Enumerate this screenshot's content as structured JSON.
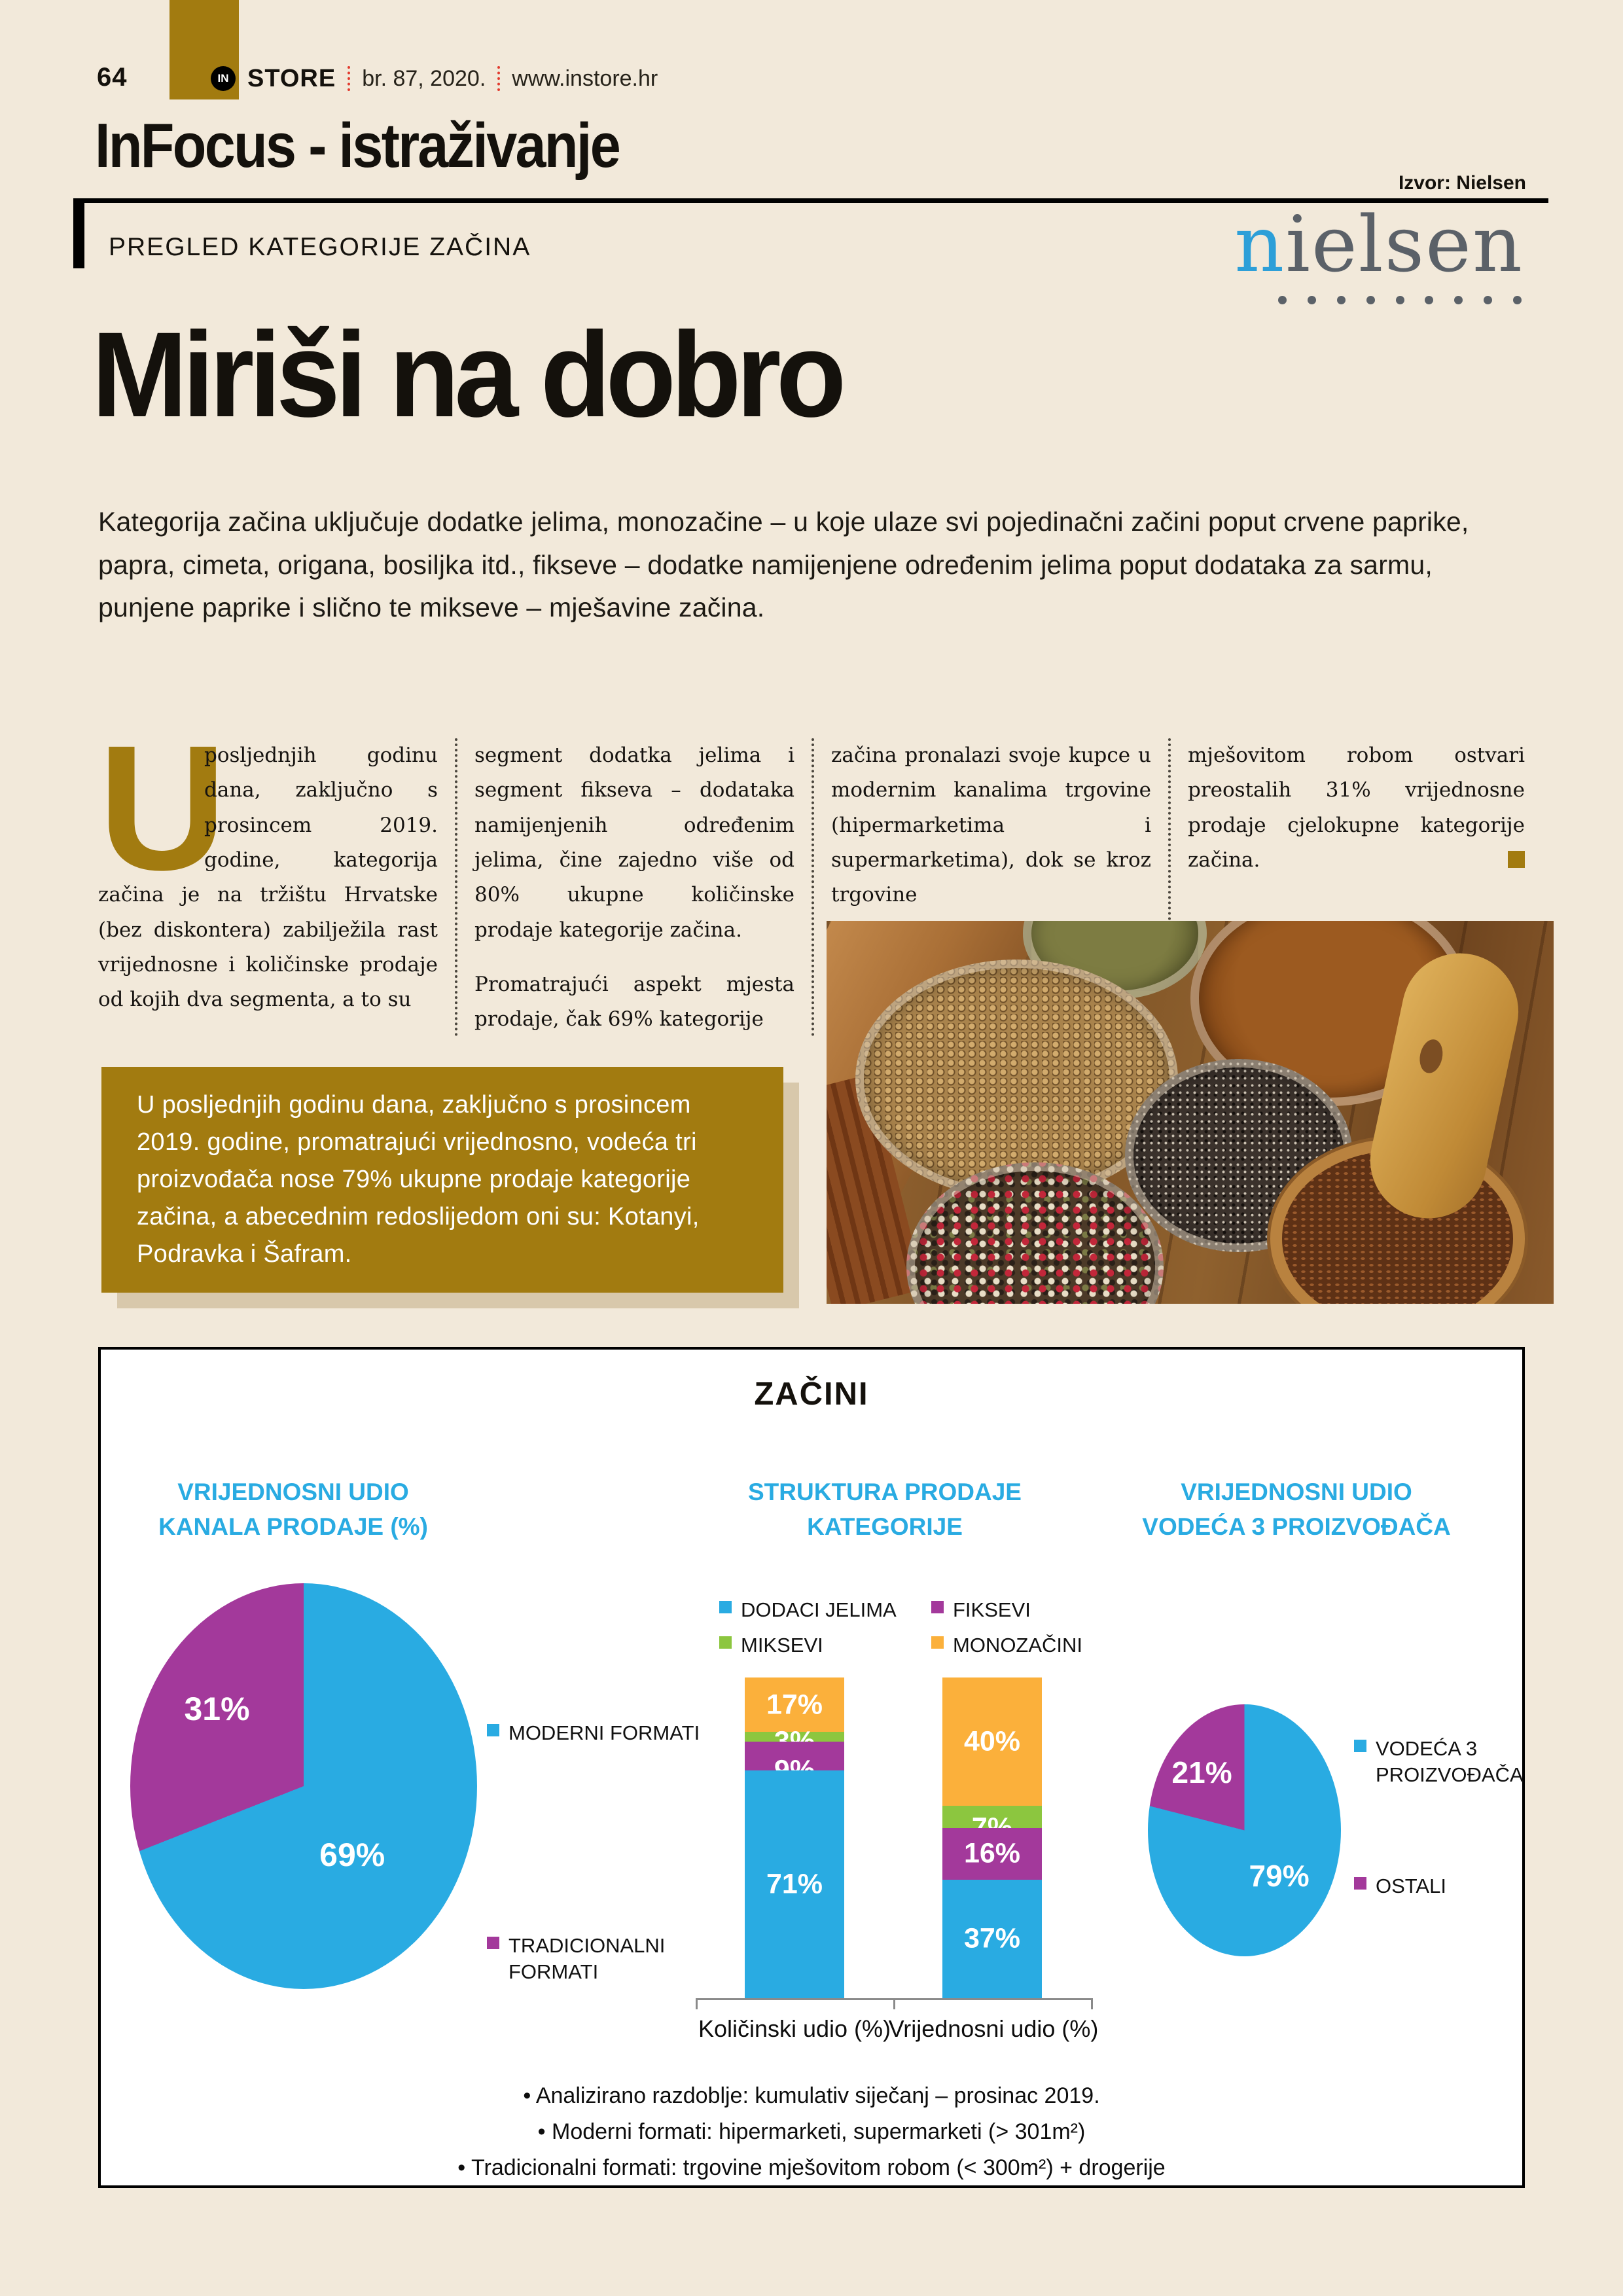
{
  "colors": {
    "background": "#f2e9da",
    "accent_gold": "#a27b10",
    "chart_blue": "#29abe2",
    "chart_purple": "#a3399b",
    "chart_green": "#8cc63f",
    "chart_orange": "#fbb03b",
    "heading_blue": "#29abe2",
    "logo_red": "#e23b2e",
    "nielsen_gray": "#5b6168",
    "nielsen_blue": "#2d9fd8"
  },
  "header": {
    "page_number": "64",
    "brand_badge": "IN",
    "brand_name": "STORE",
    "issue": "br. 87, 2020.",
    "website": "www.instore.hr",
    "section_title": "InFocus - istraživanje",
    "source": "Izvor: Nielsen",
    "kicker": "PREGLED KATEGORIJE ZAČINA",
    "nielsen_first_letter": "n",
    "nielsen_rest": "ielsen"
  },
  "article": {
    "title": "Miriši na dobro",
    "intro": "Kategorija začina uključuje dodatke jelima, monozačine – u koje ulaze svi pojedinačni začini poput crvene paprike, papra, cimeta, origana, bosiljka itd., fikseve – dodatke namijenjene određenim jelima poput dodataka za sarmu, punjene paprike i slično te mikseve – mješavine začina.",
    "dropcap": "U",
    "col1": "posljednjih godinu dana, zaključno s prosincem 2019. godine, kategorija začina je na tržištu Hrvatske (bez diskontera) zabilježila rast vrijednosne i količinske prodaje od kojih dva segmenta, a to su",
    "col2_p1": "segment dodatka jelima i segment fikseva – dodataka namijenjenih određenim jelima, čine zajedno više od 80% ukupne količinske prodaje kategorije začina.",
    "col2_p2": "Promatrajući aspekt mjesta prodaje, čak 69% kategorije",
    "col3": "začina pronalazi svoje kupce u modernim kanalima trgovine (hipermarketima i supermarketima), dok se kroz trgovine",
    "col4": "mješovitom robom ostvari preostalih 31% vrijednosne prodaje cjelokupne kategorije začina.",
    "highlight": "U posljednjih godinu dana, zaključno s prosincem 2019. godine, promatrajući vrijednosno, vodeća tri proizvođača nose 79% ukupne prodaje kategorije začina, a abecednim redoslijedom oni su: Kotanyi, Podravka i Šafram."
  },
  "chart_panel": {
    "title": "ZAČINI",
    "subtitle_left_l1": "VRIJEDNOSNI UDIO",
    "subtitle_left_l2": "KANALA PRODAJE (%)",
    "subtitle_mid_l1": "STRUKTURA PRODAJE",
    "subtitle_mid_l2": "KATEGORIJE",
    "subtitle_right_l1": "VRIJEDNOSNI UDIO",
    "subtitle_right_l2": "VODEĆA 3 PROIZVOĐAČA",
    "footnotes": [
      "•   Analizirano razdoblje: kumulativ siječanj – prosinac 2019.",
      "•   Moderni formati: hipermarketi, supermarketi (> 301m²)",
      "•   Tradicionalni formati: trgovine mješovitom robom (< 300m²) + drogerije"
    ]
  },
  "chart_data": [
    {
      "type": "pie",
      "title": "VRIJEDNOSNI UDIO KANALA PRODAJE (%)",
      "labels": [
        "MODERNI FORMATI",
        "TRADICIONALNI FORMATI"
      ],
      "values": [
        69,
        31
      ],
      "colors": [
        "#29abe2",
        "#a3399b"
      ],
      "legend_position": "right",
      "value_suffix": "%"
    },
    {
      "type": "bar",
      "stacked": true,
      "title": "STRUKTURA PRODAJE KATEGORIJE",
      "categories": [
        "Količinski udio (%)",
        "Vrijednosni udio (%)"
      ],
      "series": [
        {
          "name": "DODACI JELIMA",
          "values": [
            71,
            37
          ],
          "color": "#29abe2"
        },
        {
          "name": "FIKSEVI",
          "values": [
            9,
            16
          ],
          "color": "#a3399b"
        },
        {
          "name": "MIKSEVI",
          "values": [
            3,
            7
          ],
          "color": "#8cc63f"
        },
        {
          "name": "MONOZAČINI",
          "values": [
            17,
            40
          ],
          "color": "#fbb03b"
        }
      ],
      "ylim": [
        0,
        100
      ],
      "value_suffix": "%",
      "legend_position": "top"
    },
    {
      "type": "pie",
      "title": "VRIJEDNOSNI UDIO VODEĆA 3 PROIZVOĐAČA",
      "labels": [
        "VODEĆA 3 PROIZVOĐAČA",
        "OSTALI"
      ],
      "values": [
        79,
        21
      ],
      "colors": [
        "#29abe2",
        "#a3399b"
      ],
      "legend_position": "right",
      "value_suffix": "%"
    }
  ]
}
